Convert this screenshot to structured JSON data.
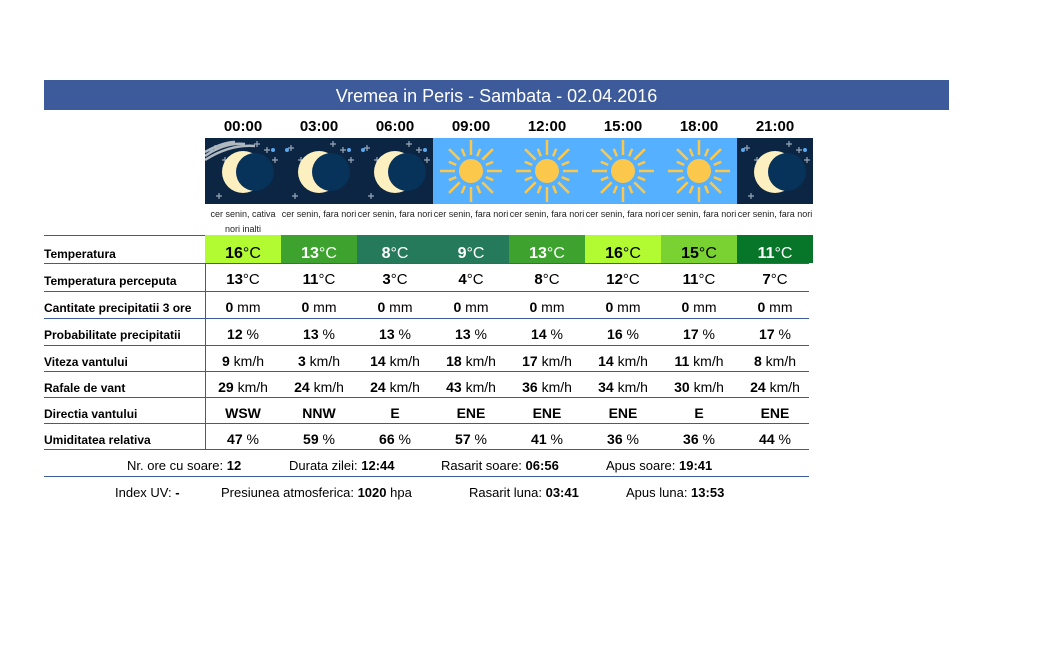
{
  "title": "Vremea in Peris - Sambata - 02.04.2016",
  "colors": {
    "header": "#3d5a9a",
    "night": "#0b2543",
    "day": "#55b0ff"
  },
  "hours": [
    {
      "time": "00:00",
      "icon": "moon-clouds-icon",
      "desc": "cer senin, cativa nori inalti",
      "temp": "16",
      "temp_color": "#b2fa32",
      "temp_text": "#000",
      "feel": "13",
      "precip": "0",
      "prob": "12",
      "wind": "9",
      "gust": "29",
      "dir": "WSW",
      "hum": "47"
    },
    {
      "time": "03:00",
      "icon": "moon-icon",
      "desc": "cer senin, fara nori",
      "temp": "13",
      "temp_color": "#3da22e",
      "temp_text": "#fff",
      "feel": "11",
      "precip": "0",
      "prob": "13",
      "wind": "3",
      "gust": "24",
      "dir": "NNW",
      "hum": "59"
    },
    {
      "time": "06:00",
      "icon": "moon-icon",
      "desc": "cer senin, fara nori",
      "temp": "8",
      "temp_color": "#267a5c",
      "temp_text": "#fff",
      "feel": "3",
      "precip": "0",
      "prob": "13",
      "wind": "14",
      "gust": "24",
      "dir": "E",
      "hum": "66"
    },
    {
      "time": "09:00",
      "icon": "sun-icon",
      "desc": "cer senin, fara nori",
      "temp": "9",
      "temp_color": "#267a5c",
      "temp_text": "#fff",
      "feel": "4",
      "precip": "0",
      "prob": "13",
      "wind": "18",
      "gust": "43",
      "dir": "ENE",
      "hum": "57"
    },
    {
      "time": "12:00",
      "icon": "sun-icon",
      "desc": "cer senin, fara nori",
      "temp": "13",
      "temp_color": "#3da22e",
      "temp_text": "#fff",
      "feel": "8",
      "precip": "0",
      "prob": "14",
      "wind": "17",
      "gust": "36",
      "dir": "ENE",
      "hum": "41"
    },
    {
      "time": "15:00",
      "icon": "sun-icon",
      "desc": "cer senin, fara nori",
      "temp": "16",
      "temp_color": "#b2fa32",
      "temp_text": "#000",
      "feel": "12",
      "precip": "0",
      "prob": "16",
      "wind": "14",
      "gust": "34",
      "dir": "ENE",
      "hum": "36"
    },
    {
      "time": "18:00",
      "icon": "sun-icon",
      "desc": "cer senin, fara nori",
      "temp": "15",
      "temp_color": "#7ad232",
      "temp_text": "#000",
      "feel": "11",
      "precip": "0",
      "prob": "17",
      "wind": "11",
      "gust": "30",
      "dir": "E",
      "hum": "36"
    },
    {
      "time": "21:00",
      "icon": "moon-icon",
      "desc": "cer senin, fara nori",
      "temp": "11",
      "temp_color": "#077628",
      "temp_text": "#fff",
      "feel": "7",
      "precip": "0",
      "prob": "17",
      "wind": "8",
      "gust": "24",
      "dir": "ENE",
      "hum": "44"
    }
  ],
  "labels": [
    "Temperatura",
    "Temperatura perceputa",
    "Cantitate precipitatii 3 ore",
    "Probabilitate precipitatii",
    "Viteza vantului",
    "Rafale de vant",
    "Directia vantului",
    "Umiditatea relativa"
  ],
  "units": {
    "temp": "°C",
    "precip": "mm",
    "prob": "%",
    "wind": "km/h",
    "hum": "%"
  },
  "footer1": [
    {
      "label": "Nr. ore cu soare: ",
      "value": "12"
    },
    {
      "label": "Durata zilei: ",
      "value": "12:44"
    },
    {
      "label": "Rasarit soare: ",
      "value": "06:56"
    },
    {
      "label": "Apus soare: ",
      "value": "19:41"
    }
  ],
  "footer2": [
    {
      "label": "Index UV: ",
      "value": "-",
      "unit": ""
    },
    {
      "label": "Presiunea atmosferica: ",
      "value": "1020",
      "unit": " hpa"
    },
    {
      "label": "Rasarit luna: ",
      "value": "03:41",
      "unit": ""
    },
    {
      "label": "Apus luna: ",
      "value": "13:53",
      "unit": ""
    }
  ]
}
